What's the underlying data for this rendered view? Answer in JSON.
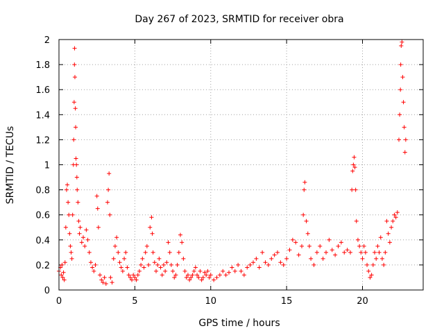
{
  "chart_data": {
    "type": "scatter",
    "title": "Day 267 of 2023, SRMTID for receiver obra",
    "xlabel": "GPS time / hours",
    "ylabel": "SRMTID / TECUs",
    "xlim": [
      0,
      24
    ],
    "ylim": [
      0,
      2
    ],
    "xticks": [
      0,
      5,
      10,
      15,
      20
    ],
    "xtick_labels": [
      "0",
      "5",
      "10",
      "15",
      "20"
    ],
    "yticks": [
      0,
      0.2,
      0.4,
      0.6,
      0.8,
      1,
      1.2,
      1.4,
      1.6,
      1.8,
      2
    ],
    "ytick_labels": [
      "0",
      "0.2",
      "0.4",
      "0.6",
      "0.8",
      "1",
      "1.2",
      "1.4",
      "1.6",
      "1.8",
      "2"
    ],
    "grid": true,
    "marker": "+",
    "marker_color": "#ff0000",
    "series": [
      {
        "name": "SRMTID",
        "points": [
          [
            0.0,
            0.15
          ],
          [
            0.1,
            0.18
          ],
          [
            0.15,
            0.12
          ],
          [
            0.2,
            0.2
          ],
          [
            0.25,
            0.1
          ],
          [
            0.3,
            0.14
          ],
          [
            0.35,
            0.08
          ],
          [
            0.4,
            0.22
          ],
          [
            0.45,
            0.5
          ],
          [
            0.5,
            0.8
          ],
          [
            0.55,
            0.84
          ],
          [
            0.6,
            0.7
          ],
          [
            0.65,
            0.6
          ],
          [
            0.7,
            0.45
          ],
          [
            0.75,
            0.35
          ],
          [
            0.8,
            0.3
          ],
          [
            0.85,
            0.25
          ],
          [
            0.9,
            0.6
          ],
          [
            0.95,
            1.0
          ],
          [
            0.97,
            1.2
          ],
          [
            1.0,
            1.5
          ],
          [
            1.02,
            1.8
          ],
          [
            1.03,
            1.93
          ],
          [
            1.05,
            1.7
          ],
          [
            1.08,
            1.45
          ],
          [
            1.1,
            1.3
          ],
          [
            1.12,
            1.05
          ],
          [
            1.15,
            1.0
          ],
          [
            1.18,
            0.9
          ],
          [
            1.2,
            0.8
          ],
          [
            1.25,
            0.7
          ],
          [
            1.3,
            0.55
          ],
          [
            1.35,
            0.45
          ],
          [
            1.4,
            0.5
          ],
          [
            1.5,
            0.38
          ],
          [
            1.6,
            0.42
          ],
          [
            1.7,
            0.35
          ],
          [
            1.8,
            0.48
          ],
          [
            1.9,
            0.4
          ],
          [
            2.0,
            0.3
          ],
          [
            2.1,
            0.22
          ],
          [
            2.2,
            0.18
          ],
          [
            2.3,
            0.15
          ],
          [
            2.4,
            0.2
          ],
          [
            2.5,
            0.75
          ],
          [
            2.55,
            0.65
          ],
          [
            2.6,
            0.5
          ],
          [
            2.7,
            0.12
          ],
          [
            2.8,
            0.08
          ],
          [
            2.9,
            0.06
          ],
          [
            3.0,
            0.1
          ],
          [
            3.1,
            0.05
          ],
          [
            3.2,
            0.7
          ],
          [
            3.25,
            0.8
          ],
          [
            3.3,
            0.93
          ],
          [
            3.35,
            0.6
          ],
          [
            3.4,
            0.1
          ],
          [
            3.5,
            0.06
          ],
          [
            3.6,
            0.25
          ],
          [
            3.7,
            0.35
          ],
          [
            3.8,
            0.42
          ],
          [
            3.9,
            0.3
          ],
          [
            4.0,
            0.22
          ],
          [
            4.1,
            0.18
          ],
          [
            4.2,
            0.15
          ],
          [
            4.3,
            0.25
          ],
          [
            4.4,
            0.3
          ],
          [
            4.5,
            0.18
          ],
          [
            4.6,
            0.12
          ],
          [
            4.7,
            0.1
          ],
          [
            4.8,
            0.08
          ],
          [
            4.9,
            0.12
          ],
          [
            5.0,
            0.1
          ],
          [
            5.1,
            0.08
          ],
          [
            5.2,
            0.12
          ],
          [
            5.3,
            0.15
          ],
          [
            5.4,
            0.2
          ],
          [
            5.5,
            0.25
          ],
          [
            5.6,
            0.18
          ],
          [
            5.7,
            0.3
          ],
          [
            5.8,
            0.35
          ],
          [
            5.9,
            0.2
          ],
          [
            6.0,
            0.5
          ],
          [
            6.1,
            0.58
          ],
          [
            6.15,
            0.45
          ],
          [
            6.2,
            0.3
          ],
          [
            6.3,
            0.22
          ],
          [
            6.4,
            0.15
          ],
          [
            6.5,
            0.2
          ],
          [
            6.6,
            0.25
          ],
          [
            6.7,
            0.18
          ],
          [
            6.8,
            0.12
          ],
          [
            6.9,
            0.2
          ],
          [
            7.0,
            0.15
          ],
          [
            7.1,
            0.22
          ],
          [
            7.2,
            0.38
          ],
          [
            7.3,
            0.3
          ],
          [
            7.4,
            0.2
          ],
          [
            7.5,
            0.15
          ],
          [
            7.6,
            0.1
          ],
          [
            7.7,
            0.12
          ],
          [
            7.8,
            0.2
          ],
          [
            7.9,
            0.3
          ],
          [
            8.0,
            0.44
          ],
          [
            8.1,
            0.38
          ],
          [
            8.2,
            0.25
          ],
          [
            8.3,
            0.15
          ],
          [
            8.4,
            0.1
          ],
          [
            8.5,
            0.12
          ],
          [
            8.6,
            0.08
          ],
          [
            8.7,
            0.1
          ],
          [
            8.8,
            0.12
          ],
          [
            8.9,
            0.15
          ],
          [
            9.0,
            0.18
          ],
          [
            9.1,
            0.12
          ],
          [
            9.2,
            0.1
          ],
          [
            9.3,
            0.15
          ],
          [
            9.4,
            0.08
          ],
          [
            9.5,
            0.1
          ],
          [
            9.6,
            0.14
          ],
          [
            9.7,
            0.12
          ],
          [
            9.8,
            0.15
          ],
          [
            9.9,
            0.1
          ],
          [
            10.0,
            0.12
          ],
          [
            10.2,
            0.08
          ],
          [
            10.4,
            0.1
          ],
          [
            10.6,
            0.12
          ],
          [
            10.8,
            0.15
          ],
          [
            11.0,
            0.12
          ],
          [
            11.2,
            0.14
          ],
          [
            11.4,
            0.18
          ],
          [
            11.6,
            0.15
          ],
          [
            11.8,
            0.2
          ],
          [
            12.0,
            0.15
          ],
          [
            12.2,
            0.12
          ],
          [
            12.4,
            0.18
          ],
          [
            12.6,
            0.2
          ],
          [
            12.8,
            0.22
          ],
          [
            13.0,
            0.25
          ],
          [
            13.2,
            0.18
          ],
          [
            13.4,
            0.3
          ],
          [
            13.6,
            0.22
          ],
          [
            13.8,
            0.2
          ],
          [
            14.0,
            0.25
          ],
          [
            14.2,
            0.28
          ],
          [
            14.4,
            0.3
          ],
          [
            14.6,
            0.22
          ],
          [
            14.8,
            0.2
          ],
          [
            15.0,
            0.25
          ],
          [
            15.2,
            0.32
          ],
          [
            15.4,
            0.4
          ],
          [
            15.6,
            0.38
          ],
          [
            15.8,
            0.28
          ],
          [
            16.0,
            0.35
          ],
          [
            16.1,
            0.6
          ],
          [
            16.15,
            0.8
          ],
          [
            16.2,
            0.86
          ],
          [
            16.3,
            0.55
          ],
          [
            16.4,
            0.45
          ],
          [
            16.5,
            0.35
          ],
          [
            16.6,
            0.25
          ],
          [
            16.8,
            0.2
          ],
          [
            17.0,
            0.3
          ],
          [
            17.2,
            0.35
          ],
          [
            17.4,
            0.25
          ],
          [
            17.6,
            0.3
          ],
          [
            17.8,
            0.4
          ],
          [
            18.0,
            0.32
          ],
          [
            18.2,
            0.28
          ],
          [
            18.4,
            0.35
          ],
          [
            18.6,
            0.38
          ],
          [
            18.8,
            0.3
          ],
          [
            19.0,
            0.32
          ],
          [
            19.2,
            0.3
          ],
          [
            19.3,
            0.8
          ],
          [
            19.35,
            0.95
          ],
          [
            19.4,
            1.0
          ],
          [
            19.45,
            1.06
          ],
          [
            19.5,
            0.98
          ],
          [
            19.55,
            0.8
          ],
          [
            19.6,
            0.55
          ],
          [
            19.7,
            0.4
          ],
          [
            19.8,
            0.35
          ],
          [
            19.9,
            0.3
          ],
          [
            20.0,
            0.25
          ],
          [
            20.1,
            0.35
          ],
          [
            20.2,
            0.3
          ],
          [
            20.3,
            0.2
          ],
          [
            20.4,
            0.15
          ],
          [
            20.5,
            0.1
          ],
          [
            20.6,
            0.12
          ],
          [
            20.7,
            0.2
          ],
          [
            20.8,
            0.3
          ],
          [
            20.9,
            0.25
          ],
          [
            21.0,
            0.35
          ],
          [
            21.1,
            0.3
          ],
          [
            21.2,
            0.42
          ],
          [
            21.3,
            0.25
          ],
          [
            21.4,
            0.2
          ],
          [
            21.5,
            0.3
          ],
          [
            21.6,
            0.55
          ],
          [
            21.7,
            0.45
          ],
          [
            21.8,
            0.38
          ],
          [
            21.9,
            0.5
          ],
          [
            22.0,
            0.55
          ],
          [
            22.1,
            0.6
          ],
          [
            22.2,
            0.58
          ],
          [
            22.3,
            0.62
          ],
          [
            22.4,
            1.2
          ],
          [
            22.45,
            1.4
          ],
          [
            22.5,
            1.6
          ],
          [
            22.52,
            1.8
          ],
          [
            22.55,
            1.95
          ],
          [
            22.6,
            1.98
          ],
          [
            22.65,
            1.7
          ],
          [
            22.7,
            1.5
          ],
          [
            22.75,
            1.3
          ],
          [
            22.8,
            1.1
          ],
          [
            22.85,
            1.2
          ]
        ]
      }
    ]
  }
}
